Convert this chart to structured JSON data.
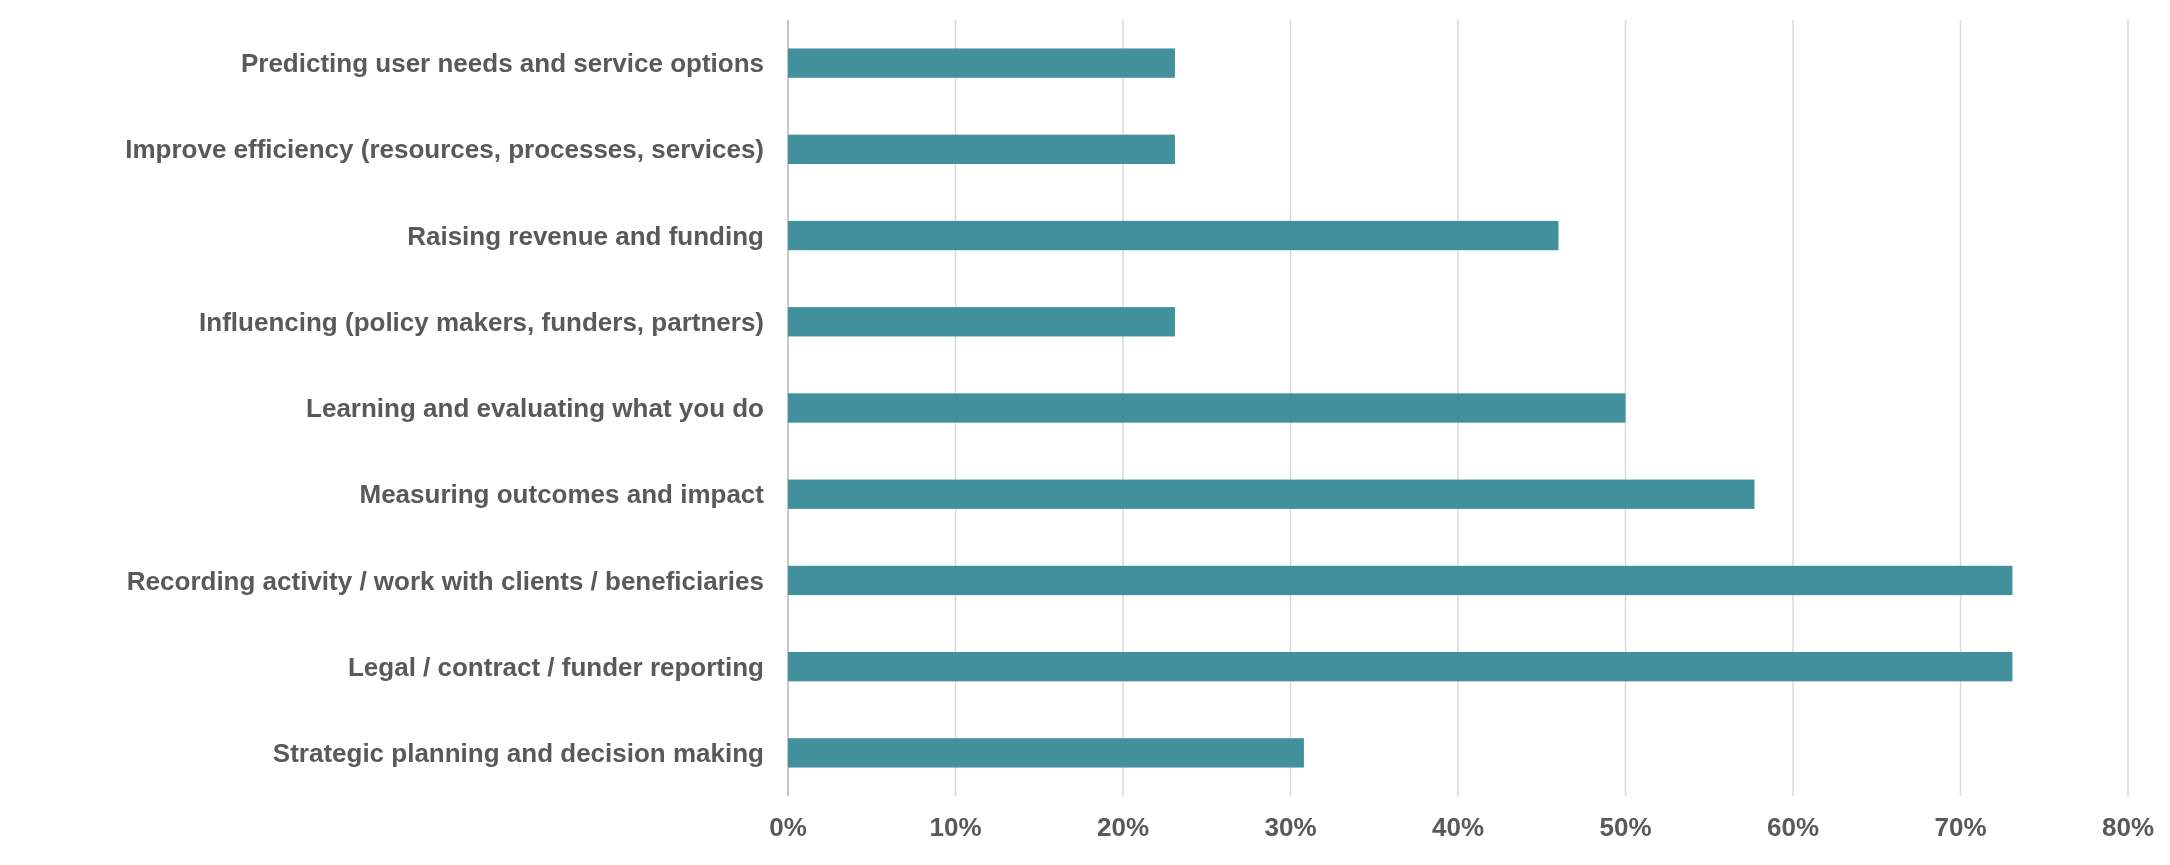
{
  "chart_data": {
    "type": "bar",
    "orientation": "horizontal",
    "categories": [
      "Predicting user needs and service options",
      "Improve efficiency (resources, processes, services)",
      "Raising revenue and funding",
      "Influencing (policy makers, funders, partners)",
      "Learning and evaluating what you do",
      "Measuring outcomes and impact",
      "Recording activity / work with clients / beneficiaries",
      "Legal / contract / funder reporting",
      "Strategic planning and decision making"
    ],
    "values": [
      23.1,
      23.1,
      46,
      23.1,
      50,
      57.7,
      73.1,
      73.1,
      30.8
    ],
    "color": "#42909b",
    "xlim": [
      0,
      80
    ],
    "xticks": [
      {
        "value": 0,
        "label": "0%"
      },
      {
        "value": 10,
        "label": "10%"
      },
      {
        "value": 20,
        "label": "20%"
      },
      {
        "value": 30,
        "label": "30%"
      },
      {
        "value": 40,
        "label": "40%"
      },
      {
        "value": 50,
        "label": "50%"
      },
      {
        "value": 60,
        "label": "60%"
      },
      {
        "value": 70,
        "label": "70%"
      },
      {
        "value": 80,
        "label": "80%"
      }
    ],
    "grid": "x"
  }
}
